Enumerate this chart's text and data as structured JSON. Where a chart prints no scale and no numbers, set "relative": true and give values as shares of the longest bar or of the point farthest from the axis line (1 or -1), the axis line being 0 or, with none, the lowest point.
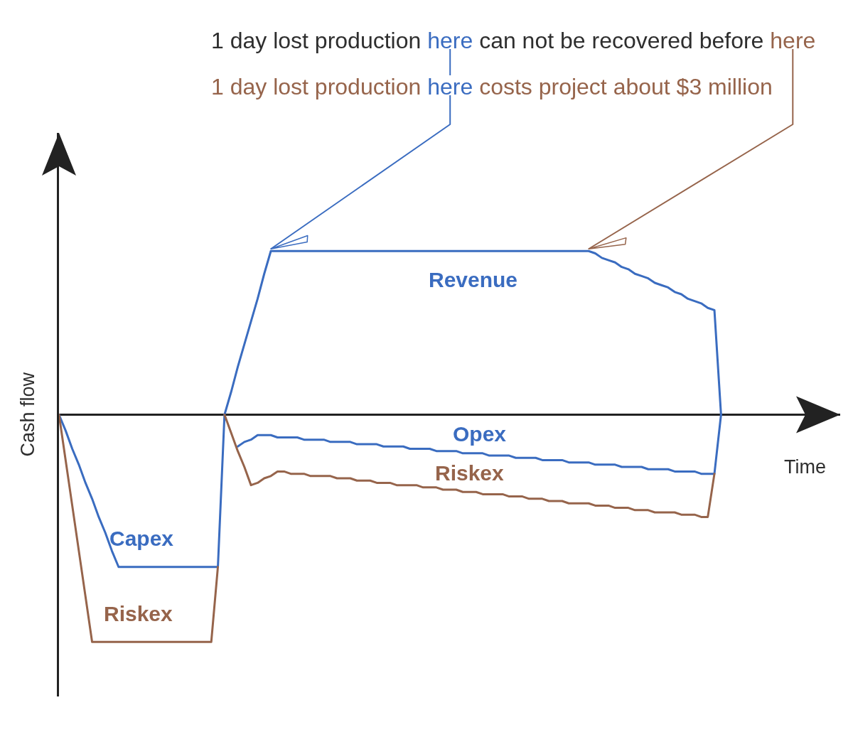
{
  "chart_data": {
    "type": "line",
    "relative": true,
    "xlabel": "Time",
    "ylabel": "Cash flow",
    "categories": [
      null,
      null,
      null,
      null,
      null,
      null,
      null,
      null,
      null,
      null,
      null,
      null,
      null,
      null,
      null,
      null,
      null,
      null,
      null,
      null,
      null,
      null,
      null,
      null,
      null,
      null,
      null,
      null,
      null,
      null,
      null,
      null,
      null,
      null,
      null,
      null,
      null,
      null,
      null,
      null,
      null,
      null,
      null,
      null,
      null,
      null,
      null,
      null,
      null,
      null,
      null,
      null,
      null,
      null,
      null,
      null,
      null,
      null,
      null,
      null,
      null,
      null,
      null,
      null,
      null,
      null,
      null,
      null,
      null,
      null,
      null,
      null,
      null,
      null,
      null,
      null,
      null,
      null,
      null,
      null,
      null,
      null,
      null,
      null,
      null,
      null,
      null,
      null,
      null,
      null,
      null,
      null,
      null,
      null,
      null,
      null,
      null,
      null,
      null,
      null,
      null
    ],
    "series": [
      {
        "name": "Revenue",
        "color": "#3a6cc0",
        "values": [
          null,
          null,
          null,
          null,
          null,
          null,
          null,
          null,
          null,
          null,
          null,
          null,
          null,
          null,
          null,
          null,
          null,
          null,
          null,
          null,
          null,
          null,
          null,
          null,
          null,
          0,
          0.1,
          0.21,
          0.31,
          0.41,
          0.51,
          0.62,
          0.72,
          0.72,
          0.72,
          0.72,
          0.72,
          0.72,
          0.72,
          0.72,
          0.72,
          0.72,
          0.72,
          0.72,
          0.72,
          0.72,
          0.72,
          0.72,
          0.72,
          0.72,
          0.72,
          0.72,
          0.72,
          0.72,
          0.72,
          0.72,
          0.72,
          0.72,
          0.72,
          0.72,
          0.72,
          0.72,
          0.72,
          0.72,
          0.72,
          0.72,
          0.72,
          0.72,
          0.72,
          0.72,
          0.72,
          0.72,
          0.72,
          0.72,
          0.72,
          0.72,
          0.72,
          0.72,
          0.72,
          0.72,
          0.72,
          0.71,
          0.69,
          0.68,
          0.67,
          0.65,
          0.64,
          0.62,
          0.61,
          0.6,
          0.58,
          0.57,
          0.56,
          0.54,
          0.53,
          0.51,
          0.5,
          0.49,
          0.47,
          0.46,
          0
        ]
      },
      {
        "name": "Capex",
        "color": "#3a6cc0",
        "values": [
          0,
          -0.07,
          -0.15,
          -0.22,
          -0.3,
          -0.37,
          -0.45,
          -0.52,
          -0.6,
          -0.67,
          -0.67,
          -0.67,
          -0.67,
          -0.67,
          -0.67,
          -0.67,
          -0.67,
          -0.67,
          -0.67,
          -0.67,
          -0.67,
          -0.67,
          -0.67,
          -0.67,
          -0.67,
          0,
          null,
          null,
          null,
          null,
          null,
          null,
          null,
          null,
          null,
          null,
          null,
          null,
          null,
          null,
          null,
          null,
          null,
          null,
          null,
          null,
          null,
          null,
          null,
          null,
          null,
          null,
          null,
          null,
          null,
          null,
          null,
          null,
          null,
          null,
          null,
          null,
          null,
          null,
          null,
          null,
          null,
          null,
          null,
          null,
          null,
          null,
          null,
          null,
          null,
          null,
          null,
          null,
          null,
          null,
          null,
          null,
          null,
          null,
          null,
          null,
          null,
          null,
          null,
          null,
          null,
          null,
          null,
          null,
          null,
          null,
          null,
          null,
          null,
          null,
          null
        ]
      },
      {
        "name": "Opex",
        "color": "#3a6cc0",
        "values": [
          null,
          null,
          null,
          null,
          null,
          null,
          null,
          null,
          null,
          null,
          null,
          null,
          null,
          null,
          null,
          null,
          null,
          null,
          null,
          null,
          null,
          null,
          null,
          null,
          null,
          null,
          null,
          -0.14,
          -0.12,
          -0.11,
          -0.09,
          -0.09,
          -0.09,
          -0.1,
          -0.1,
          -0.1,
          -0.1,
          -0.11,
          -0.11,
          -0.11,
          -0.11,
          -0.12,
          -0.12,
          -0.12,
          -0.12,
          -0.13,
          -0.13,
          -0.13,
          -0.13,
          -0.14,
          -0.14,
          -0.14,
          -0.14,
          -0.15,
          -0.15,
          -0.15,
          -0.15,
          -0.16,
          -0.16,
          -0.16,
          -0.16,
          -0.17,
          -0.17,
          -0.17,
          -0.17,
          -0.18,
          -0.18,
          -0.18,
          -0.18,
          -0.19,
          -0.19,
          -0.19,
          -0.19,
          -0.2,
          -0.2,
          -0.2,
          -0.2,
          -0.21,
          -0.21,
          -0.21,
          -0.21,
          -0.22,
          -0.22,
          -0.22,
          -0.22,
          -0.23,
          -0.23,
          -0.23,
          -0.23,
          -0.24,
          -0.24,
          -0.24,
          -0.24,
          -0.25,
          -0.25,
          -0.25,
          -0.25,
          -0.26,
          -0.26,
          -0.26,
          0
        ]
      },
      {
        "name": "Riskex",
        "color": "#96644b",
        "values": [
          0,
          -0.2,
          -0.4,
          -0.6,
          -0.8,
          -1,
          -1,
          -1,
          -1,
          -1,
          -1,
          -1,
          -1,
          -1,
          -1,
          -1,
          -1,
          -1,
          -1,
          -1,
          -1,
          -1,
          -1,
          -1,
          -0.67,
          null,
          null,
          null,
          null,
          null,
          null,
          null,
          null,
          null,
          null,
          null,
          null,
          null,
          null,
          null,
          null,
          null,
          null,
          null,
          null,
          null,
          null,
          null,
          null,
          null,
          null,
          null,
          null,
          null,
          null,
          null,
          null,
          null,
          null,
          null,
          null,
          null,
          null,
          null,
          null,
          null,
          null,
          null,
          null,
          null,
          null,
          null,
          null,
          null,
          null,
          null,
          null,
          null,
          null,
          null,
          null,
          null,
          null,
          null,
          null,
          null,
          null,
          null,
          null,
          null,
          null,
          null,
          null,
          null,
          null,
          null,
          null,
          null,
          null,
          null,
          null
        ]
      },
      {
        "name": "Riskex",
        "color": "#96644b",
        "values": [
          null,
          null,
          null,
          null,
          null,
          null,
          null,
          null,
          null,
          null,
          null,
          null,
          null,
          null,
          null,
          null,
          null,
          null,
          null,
          null,
          null,
          null,
          null,
          null,
          null,
          0,
          -0.08,
          -0.16,
          -0.23,
          -0.31,
          -0.3,
          -0.28,
          -0.27,
          -0.25,
          -0.25,
          -0.26,
          -0.26,
          -0.26,
          -0.27,
          -0.27,
          -0.27,
          -0.27,
          -0.28,
          -0.28,
          -0.28,
          -0.29,
          -0.29,
          -0.29,
          -0.3,
          -0.3,
          -0.3,
          -0.31,
          -0.31,
          -0.31,
          -0.31,
          -0.32,
          -0.32,
          -0.32,
          -0.33,
          -0.33,
          -0.33,
          -0.34,
          -0.34,
          -0.34,
          -0.35,
          -0.35,
          -0.35,
          -0.35,
          -0.36,
          -0.36,
          -0.36,
          -0.37,
          -0.37,
          -0.37,
          -0.38,
          -0.38,
          -0.38,
          -0.39,
          -0.39,
          -0.39,
          -0.39,
          -0.4,
          -0.4,
          -0.4,
          -0.41,
          -0.41,
          -0.41,
          -0.42,
          -0.42,
          -0.42,
          -0.43,
          -0.43,
          -0.43,
          -0.43,
          -0.44,
          -0.44,
          -0.44,
          -0.45,
          -0.45,
          -0.26,
          null
        ]
      }
    ],
    "annotations": [
      "1 day lost production here can not be recovered before here",
      "1 day lost production here costs project about $3 million"
    ]
  }
}
